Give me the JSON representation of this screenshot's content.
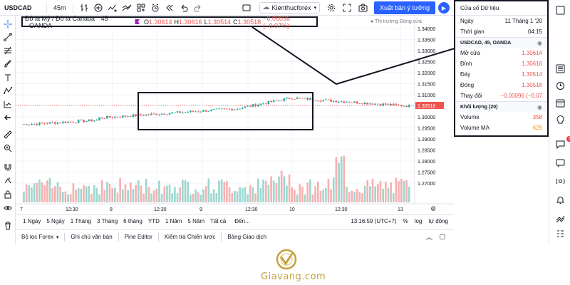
{
  "toolbar": {
    "symbol": "USDCAD",
    "interval": "45m",
    "user_label": "Kienthucforex",
    "publish_label": "Xuất bản ý tưởng"
  },
  "legend": {
    "title": "Đô la Mỹ / Đô la Canada",
    "interval": "45",
    "exchange": "OANDA",
    "open_label": "O",
    "open": "1.30614",
    "high_label": "H",
    "high": "1.30616",
    "low_label": "L",
    "low": "1.30514",
    "close_label": "C",
    "close": "1.30518",
    "change": "−0.00096 (−0.07%)"
  },
  "market_status": "Thị trường Đóng cửa",
  "price_axis": {
    "ticks": [
      "1.34000",
      "1.33500",
      "1.33000",
      "1.32500",
      "1.32000",
      "1.31500",
      "1.31000",
      "1.30500",
      "1.30000",
      "1.29500",
      "1.29000",
      "1.28500",
      "1.28000",
      "1.27500",
      "1.27000"
    ],
    "current_price": "1.30518"
  },
  "time_axis": {
    "ticks": [
      "7",
      "12:30",
      "8",
      "12:30",
      "9",
      "12:30",
      "10",
      "12:30",
      "13"
    ]
  },
  "range_bar": {
    "items": [
      "1 Ngày",
      "5 Ngày",
      "1 Tháng",
      "3 Tháng",
      "6 tháng",
      "YTD",
      "1 Năm",
      "5 Năm",
      "Tất cả",
      "Đến..."
    ],
    "clock": "13:16:59 (UTC+7)",
    "percent": "%",
    "log": "log",
    "auto": "tự động"
  },
  "panel_tabs": [
    "Bộ lọc Forex",
    "Ghi chú văn bản",
    "Pine Editor",
    "Kiểm tra Chiến lược",
    "Bảng Giao dịch"
  ],
  "data_window": {
    "title": "Cửa sổ Dữ liệu",
    "date_label": "Ngày",
    "date_value": "11 Tháng 1 '20",
    "time_label": "Thời gian",
    "time_value": "04:15",
    "section1": "USDCAD, 45, OANDA",
    "rows": [
      {
        "label": "Mở cửa",
        "value": "1.30614"
      },
      {
        "label": "Đỉnh",
        "value": "1.30616"
      },
      {
        "label": "Đáy",
        "value": "1.30514"
      },
      {
        "label": "Đóng",
        "value": "1.30518"
      },
      {
        "label": "Thay đổi",
        "value": "−0.00096 (−0.07"
      }
    ],
    "section2": "Khối lượng (20)",
    "volume_label": "Volume",
    "volume_value": "358",
    "volume_ma_label": "Volume MA",
    "volume_ma_value": "629"
  },
  "notification_count": "2",
  "brand": "Giavang.com",
  "colors": {
    "up": "#26a69a",
    "down": "#ef5350",
    "accent": "#2962ff",
    "brand": "#c6a13b"
  }
}
